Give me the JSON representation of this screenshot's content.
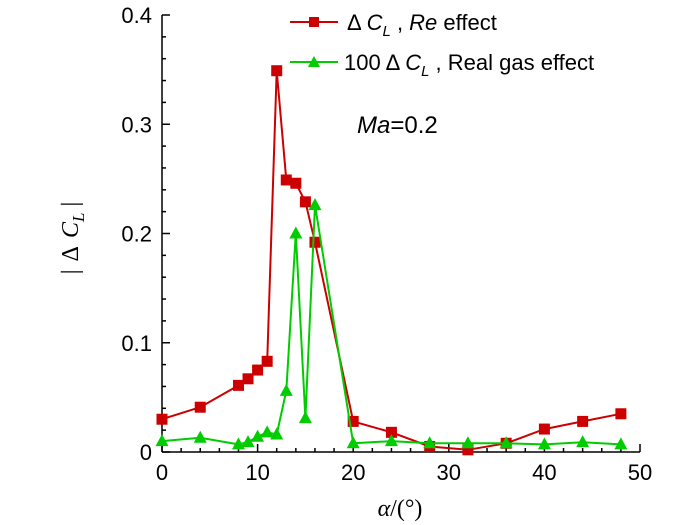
{
  "chart_data": {
    "type": "line",
    "xlim": [
      0,
      50
    ],
    "ylim": [
      0,
      0.4
    ],
    "x_ticks": [
      "0",
      "10",
      "20",
      "30",
      "40",
      "50"
    ],
    "y_ticks": [
      "0",
      "0.1",
      "0.2",
      "0.3",
      "0.4"
    ],
    "xlabel": {
      "symbol": "α",
      "suffix": "/(°)"
    },
    "ylabel": {
      "open": "|",
      "delta": "Δ",
      "var": "C",
      "sub": "L",
      "close": "|"
    },
    "annotation": {
      "italic": "Ma",
      "rest": "=0.2"
    },
    "grid": false,
    "legend_position": "top-right",
    "series": [
      {
        "name": "Re effect",
        "legend_prefix": "Δ ",
        "legend_var": "C",
        "legend_sub": "L",
        "legend_sep": " , ",
        "legend_italic": "Re",
        "legend_rest": " effect",
        "color": "#cc0000",
        "marker": "square",
        "x": [
          0,
          4,
          8,
          9,
          10,
          11,
          12,
          13,
          14,
          15,
          16,
          20,
          24,
          28,
          32,
          36,
          40,
          44,
          48
        ],
        "y": [
          0.03,
          0.041,
          0.061,
          0.067,
          0.075,
          0.083,
          0.349,
          0.249,
          0.246,
          0.229,
          0.192,
          0.028,
          0.018,
          0.005,
          0.002,
          0.008,
          0.021,
          0.028,
          0.035
        ]
      },
      {
        "name": "Real gas effect",
        "legend_prefix": "100 Δ ",
        "legend_var": "C",
        "legend_sub": "L",
        "legend_sep": " , ",
        "legend_italic": "",
        "legend_rest": "Real gas effect",
        "color": "#00cc00",
        "marker": "triangle",
        "x": [
          0,
          4,
          8,
          9,
          10,
          11,
          12,
          13,
          14,
          15,
          16,
          20,
          24,
          28,
          32,
          36,
          40,
          44,
          48
        ],
        "y": [
          0.01,
          0.013,
          0.007,
          0.009,
          0.014,
          0.018,
          0.016,
          0.056,
          0.2,
          0.031,
          0.226,
          0.008,
          0.01,
          0.008,
          0.008,
          0.008,
          0.007,
          0.009,
          0.007
        ]
      }
    ]
  }
}
